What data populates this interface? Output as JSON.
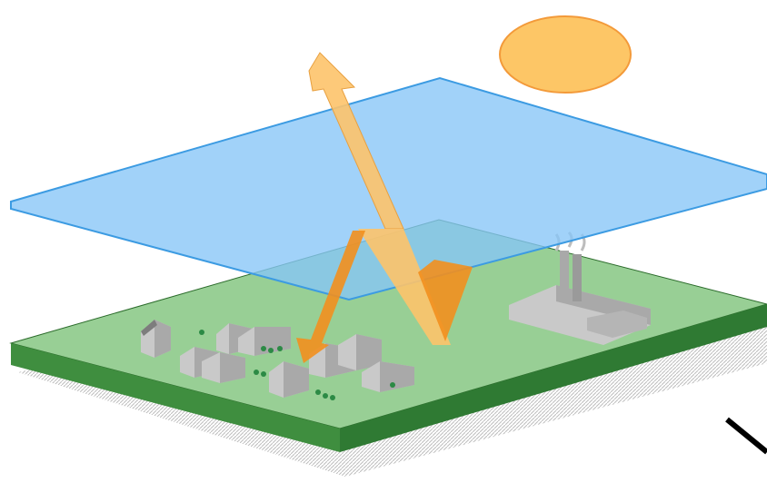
{
  "colors": {
    "background": "#ffffff",
    "sun": "#fdc666",
    "sun_edge": "#f39a3a",
    "atmosphere": "#86c5f7",
    "atmosphere_edge": "#3c9be2",
    "ground_top": "#98cf95",
    "ground_side": "#3f8e3f",
    "ground_edge": "#2b6b2b",
    "shadow_hatch": "#bdbdbd",
    "beam_light": "#fdc36a",
    "beam_dark": "#f28f1e",
    "building_light": "#c9c9c9",
    "building_mid": "#a9a9a9",
    "building_dark": "#7d7d7d",
    "tree": "#2c8a45"
  },
  "elements": {
    "sun": "sun",
    "atmosphere_layer": "atmosphere-layer",
    "ground_plate": "ground-plate",
    "incoming_beam": "incoming-sunlight-arrow",
    "reflected_beam": "reflected-radiation-arrow",
    "trapped_beam": "trapped-radiation-arrow",
    "houses": "houses",
    "factory": "factory",
    "trees": "trees",
    "pointer": "pointer-line"
  }
}
